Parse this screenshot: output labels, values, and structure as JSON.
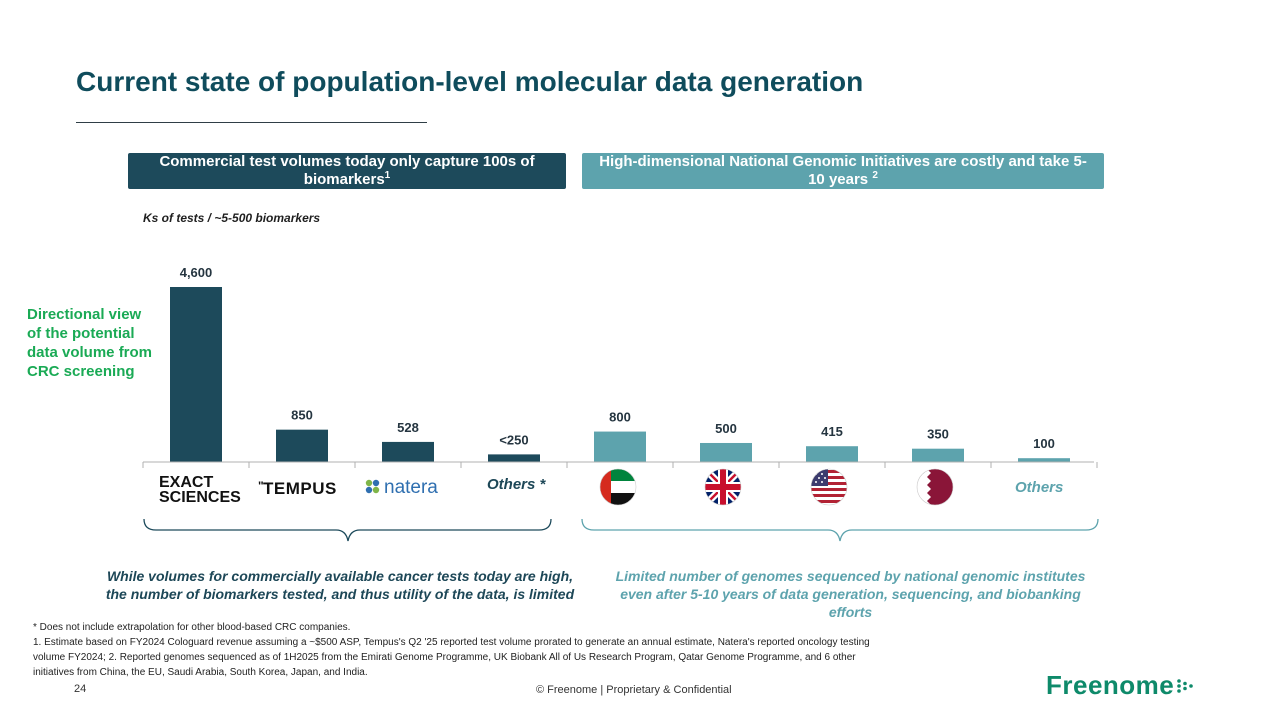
{
  "title": "Current state of population-level molecular data generation",
  "header_left": {
    "text": "Commercial test volumes today only capture 100s of biomarkers",
    "sup": "1"
  },
  "header_right": {
    "text": "High-dimensional National Genomic Initiatives are costly and take 5-10 years",
    "sup": "2"
  },
  "ks_label": "Ks of tests / ~5-500 biomarkers",
  "directional_label": "Directional view of the potential data volume from CRC screening",
  "chart_data": {
    "type": "bar",
    "ylim": [
      0,
      4600
    ],
    "categories": [
      "EXACT SCIENCES",
      "TEMPUS",
      "natera",
      "Others *",
      "UAE",
      "UK",
      "USA",
      "Qatar",
      "Others"
    ],
    "values": [
      4600,
      850,
      528,
      200,
      800,
      500,
      415,
      350,
      100
    ],
    "data_labels": [
      "4,600",
      "850",
      "528",
      "<250",
      "800",
      "500",
      "415",
      "350",
      "100"
    ],
    "groups": [
      {
        "name": "Commercial tests",
        "indices": [
          0,
          1,
          2,
          3
        ],
        "color": "#1d4a5b"
      },
      {
        "name": "National Genomic Initiatives",
        "indices": [
          4,
          5,
          6,
          7,
          8
        ],
        "color": "#5da3ad"
      }
    ]
  },
  "logos": {
    "exact_line1": "EXACT",
    "exact_line2": "SCIENCES",
    "tempus": "TEMPUS",
    "natera": "natera",
    "others_commercial": "Others *",
    "others_national": "Others"
  },
  "caption_left": "While volumes for commercially available cancer tests today are high, the number of biomarkers tested, and thus utility of the data, is limited",
  "caption_right": "Limited number of genomes sequenced by national genomic institutes even after 5-10 years of data generation, sequencing, and biobanking efforts",
  "footnotes": [
    "* Does not include extrapolation for other blood-based CRC companies.",
    "1. Estimate based on FY2024 Cologuard revenue assuming a ~$500 ASP, Tempus's Q2 '25 reported test volume prorated to generate an annual estimate, Natera's reported oncology testing volume FY2024; 2. Reported genomes sequenced as of 1H2025 from the  Emirati Genome Programme, UK Biobank All of Us Research Program, Qatar Genome Programme, and 6 other initiatives from China, the EU, Saudi Arabia, South Korea, Japan, and India."
  ],
  "page_number": "24",
  "footer": "© Freenome | Proprietary & Confidential",
  "brand": "Freenome",
  "colors": {
    "dark": "#1d4a5b",
    "light": "#5da3ad",
    "green": "#1aaa55",
    "brand": "#0e8a6a"
  }
}
